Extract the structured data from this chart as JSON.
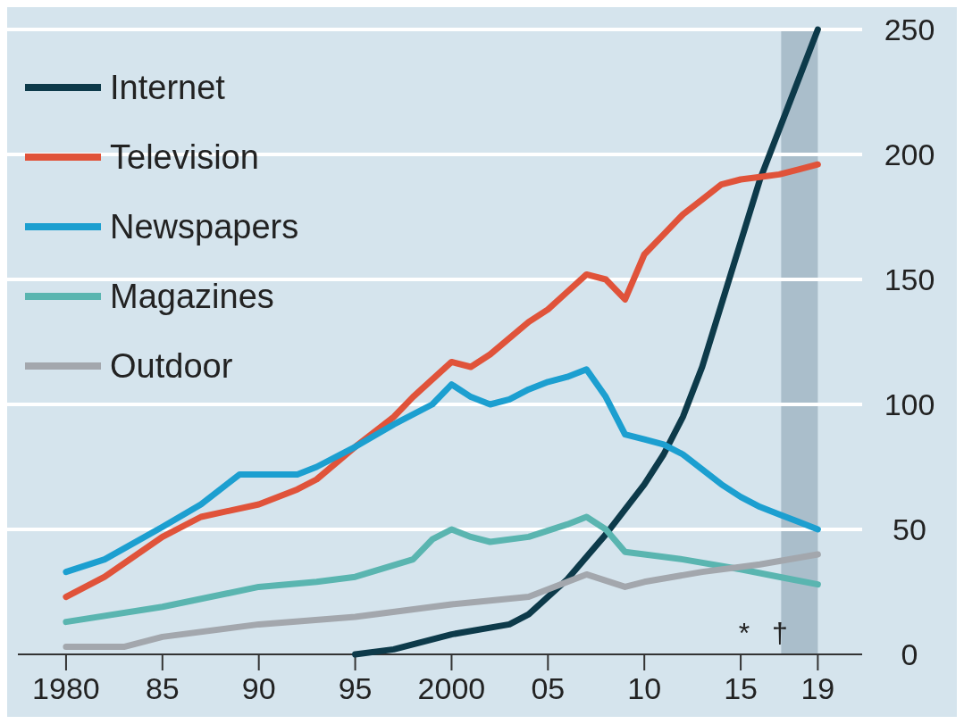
{
  "chart_data": {
    "type": "line",
    "xlim": [
      1977.5,
      2021.3
    ],
    "ylim": [
      0,
      250
    ],
    "xticks": [
      {
        "value": 1980,
        "label": "1980"
      },
      {
        "value": 1985,
        "label": "85"
      },
      {
        "value": 1990,
        "label": "90"
      },
      {
        "value": 1995,
        "label": "95"
      },
      {
        "value": 2000,
        "label": "2000"
      },
      {
        "value": 2005,
        "label": "05"
      },
      {
        "value": 2010,
        "label": "10"
      },
      {
        "value": 2015,
        "label": "15"
      },
      {
        "value": 2019,
        "label": "19"
      }
    ],
    "yticks": [
      0,
      50,
      100,
      150,
      200,
      250
    ],
    "grid": "y",
    "legend": "top left",
    "line_style": "solid",
    "marker": "none",
    "bands": [
      {
        "axis": "x",
        "from": 2017.1,
        "to": 2019,
        "color": "#9fb4c2"
      }
    ],
    "annotations": [
      "*",
      "†"
    ],
    "series": [
      {
        "name": "Internet",
        "color": "#0d3a4a",
        "x": [
          1995,
          1997,
          2000,
          2003,
          2004,
          2006,
          2008,
          2009,
          2010,
          2011,
          2012,
          2013,
          2014,
          2015,
          2016,
          2017,
          2018,
          2019
        ],
        "values": [
          0,
          2,
          8,
          12,
          16,
          30,
          48,
          58,
          68,
          80,
          95,
          115,
          140,
          165,
          190,
          210,
          230,
          250
        ]
      },
      {
        "name": "Television",
        "color": "#e0533a",
        "x": [
          1980,
          1982,
          1985,
          1987,
          1990,
          1992,
          1993,
          1995,
          1997,
          1998,
          2000,
          2001,
          2002,
          2004,
          2005,
          2006,
          2007,
          2008,
          2009,
          2010,
          2011,
          2012,
          2013,
          2014,
          2015,
          2016,
          2017,
          2018,
          2019
        ],
        "values": [
          23,
          31,
          47,
          55,
          60,
          66,
          70,
          83,
          95,
          103,
          117,
          115,
          120,
          133,
          138,
          145,
          152,
          150,
          142,
          160,
          168,
          176,
          182,
          188,
          190,
          191,
          192,
          194,
          196
        ]
      },
      {
        "name": "Newspapers",
        "color": "#1c9fd0",
        "x": [
          1980,
          1982,
          1985,
          1987,
          1989,
          1990,
          1992,
          1993,
          1995,
          1997,
          1999,
          2000,
          2001,
          2002,
          2003,
          2004,
          2005,
          2006,
          2007,
          2008,
          2009,
          2010,
          2011,
          2012,
          2013,
          2014,
          2015,
          2016,
          2017,
          2018,
          2019
        ],
        "values": [
          33,
          38,
          51,
          60,
          72,
          72,
          72,
          75,
          83,
          92,
          100,
          108,
          103,
          100,
          102,
          106,
          109,
          111,
          114,
          103,
          88,
          86,
          84,
          80,
          74,
          68,
          63,
          59,
          56,
          53,
          50
        ]
      },
      {
        "name": "Magazines",
        "color": "#5ab5b0",
        "x": [
          1980,
          1985,
          1990,
          1993,
          1995,
          1998,
          1999,
          2000,
          2001,
          2002,
          2004,
          2006,
          2007,
          2008,
          2009,
          2010,
          2012,
          2015,
          2017,
          2019
        ],
        "values": [
          13,
          19,
          27,
          29,
          31,
          38,
          46,
          50,
          47,
          45,
          47,
          52,
          55,
          50,
          41,
          40,
          38,
          34,
          31,
          28
        ]
      },
      {
        "name": "Outdoor",
        "color": "#a3a7ad",
        "x": [
          1980,
          1983,
          1985,
          1990,
          1995,
          2000,
          2004,
          2007,
          2009,
          2010,
          2013,
          2016,
          2019
        ],
        "values": [
          3,
          3,
          7,
          12,
          15,
          20,
          23,
          32,
          27,
          29,
          33,
          36,
          40
        ]
      }
    ]
  }
}
